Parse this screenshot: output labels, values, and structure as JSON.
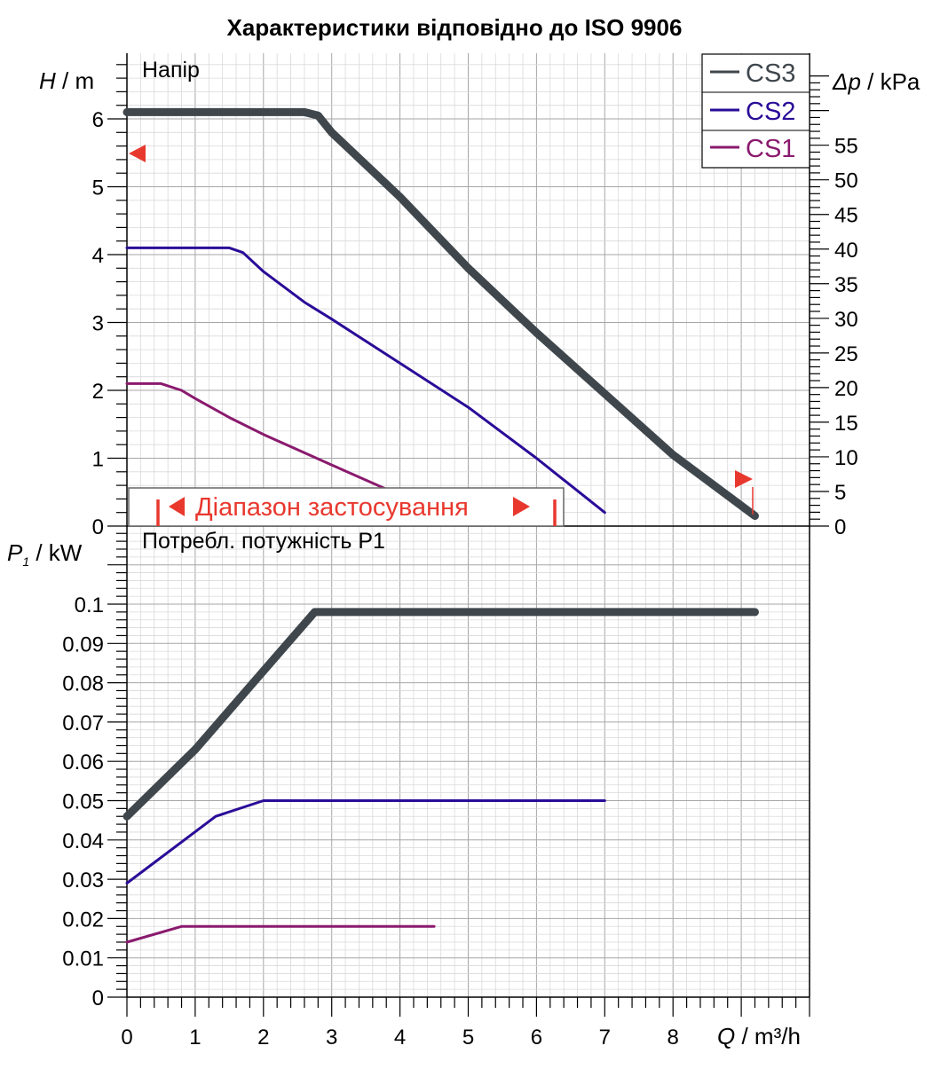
{
  "title": "Характеристики відповідно до ISO 9906",
  "colors": {
    "CS3": "#3f474d",
    "CS2": "#2a0c98",
    "CS1": "#8a1a6e",
    "range": "#e8382e",
    "grid_minor": "#d9d9d9",
    "grid_major": "#a6a6a6"
  },
  "axes": {
    "head_label_italic": "H",
    "head_label_unit": " / m",
    "dp_label_italic": "Δp",
    "dp_label_unit": " / kPa",
    "power_label_italic": "P",
    "power_label_sub": "1",
    "power_label_unit": " / kW",
    "flow_label_italic": "Q",
    "flow_label_unit": " / m³/h"
  },
  "head_panel_label": "Напір",
  "power_panel_label": "Потребл. потужність P1",
  "range_label": "Діапазон застосування",
  "legend": [
    "CS3",
    "CS2",
    "CS1"
  ],
  "chart_data": [
    {
      "type": "line",
      "panel": "head",
      "title": "Напір",
      "xlabel": "Q / m³/h",
      "ylabel": "H / m",
      "y2label": "Δp / kPa",
      "xlim": [
        0,
        10
      ],
      "ylim": [
        0,
        7
      ],
      "y2lim": [
        0,
        68.6
      ],
      "x_ticks": [
        0,
        1,
        2,
        3,
        4,
        5,
        6,
        7,
        8
      ],
      "y_ticks": [
        "0",
        "1",
        "2",
        "3",
        "4",
        "5",
        "6"
      ],
      "y2_ticks": [
        "0",
        "5",
        "10",
        "15",
        "20",
        "25",
        "30",
        "35",
        "40",
        "45",
        "50",
        "55"
      ],
      "grid": true,
      "legend_position": "top-right",
      "series": [
        {
          "name": "CS3",
          "x": [
            0,
            2.6,
            2.8,
            3.0,
            4.0,
            5.0,
            6.0,
            7.0,
            8.0,
            9.2
          ],
          "y": [
            6.1,
            6.1,
            6.05,
            5.8,
            4.85,
            3.8,
            2.85,
            1.95,
            1.05,
            0.15
          ]
        },
        {
          "name": "CS2",
          "x": [
            0,
            1.5,
            1.7,
            2.0,
            2.6,
            3.0,
            4.0,
            5.0,
            6.0,
            7.0
          ],
          "y": [
            4.1,
            4.1,
            4.03,
            3.75,
            3.3,
            3.05,
            2.4,
            1.75,
            1.0,
            0.2
          ]
        },
        {
          "name": "CS1",
          "x": [
            0,
            0.5,
            0.8,
            1.0,
            1.5,
            2.0,
            3.0,
            3.9
          ],
          "y": [
            2.1,
            2.1,
            2.0,
            1.88,
            1.6,
            1.35,
            0.9,
            0.5
          ]
        }
      ],
      "annotations": [
        {
          "text": "Діапазон застосування",
          "x_range": [
            0.5,
            6.3
          ]
        }
      ]
    },
    {
      "type": "line",
      "panel": "power",
      "title": "Потребл. потужність P1",
      "xlabel": "Q / m³/h",
      "ylabel": "P1 / kW",
      "xlim": [
        0,
        10
      ],
      "ylim": [
        0,
        0.12
      ],
      "x_ticks": [
        0,
        1,
        2,
        3,
        4,
        5,
        6,
        7,
        8
      ],
      "y_ticks": [
        "0",
        "0.01",
        "0.02",
        "0.03",
        "0.04",
        "0.05",
        "0.06",
        "0.07",
        "0.08",
        "0.09",
        "0.1"
      ],
      "grid": true,
      "series": [
        {
          "name": "CS3",
          "x": [
            0,
            1.0,
            2.0,
            2.75,
            9.2
          ],
          "y": [
            0.046,
            0.063,
            0.083,
            0.098,
            0.098
          ]
        },
        {
          "name": "CS2",
          "x": [
            0,
            1.3,
            2.0,
            7.0
          ],
          "y": [
            0.029,
            0.046,
            0.05,
            0.05
          ]
        },
        {
          "name": "CS1",
          "x": [
            0,
            0.8,
            4.5
          ],
          "y": [
            0.014,
            0.018,
            0.018
          ]
        }
      ]
    }
  ]
}
